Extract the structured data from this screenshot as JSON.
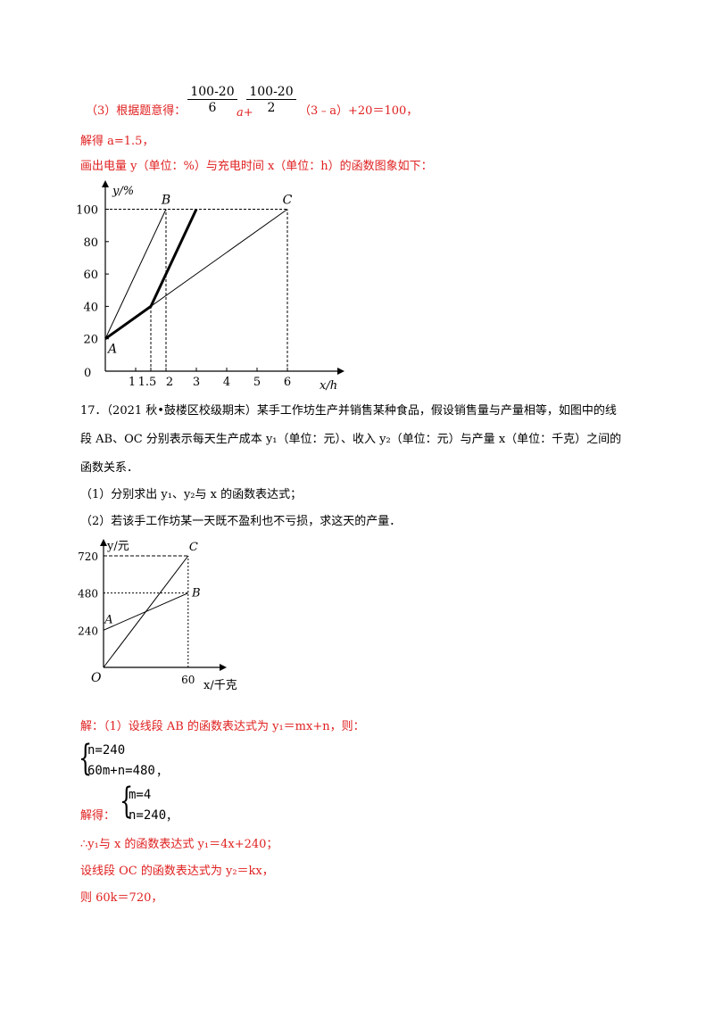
{
  "part3": {
    "prefix": "（3）根据题意得：",
    "frac1_num": "100-20",
    "frac1_den": "6",
    "a_plus": "a+",
    "frac2_num": "100-20",
    "frac2_den": "2",
    "suffix": "（3﹣a）+20＝100，"
  },
  "solve_a": "解得 a=1.5，",
  "draw_line": "画出电量 y（单位：%）与充电时间 x（单位：h）的函数图象如下：",
  "problem17": {
    "line1": "17．（2021 秋•鼓楼区校级期末）某手工作坊生产并销售某种食品，假设销售量与产量相等，如图中的线",
    "line2": "段 AB、OC 分别表示每天生产成本 y₁（单位：元）、收入 y₂（单位：元）与产量 x（单位：千克）之间的",
    "line3": "函数关系．",
    "q1": "（1）分别求出 y₁、y₂与 x 的函数表达式；",
    "q2": "（2）若该手工作坊某一天既不盈利也不亏损，求这天的产量．"
  },
  "solution": {
    "intro": "解：（1）设线段 AB 的函数表达式为 y₁＝mx+n，则：",
    "sys1_eq1": "n=240",
    "sys1_eq2": "60m+n=480",
    "sys1_comma": "，",
    "solve_label": "解得：",
    "sys2_eq1": "m=4",
    "sys2_eq2": "n=240",
    "sys2_comma": "，",
    "therefore": "∴y₁与 x 的函数表达式 y₁＝4x+240；",
    "set_oc": "设线段 OC 的函数表达式为 y₂＝kx，",
    "then": "则 60k＝720，"
  },
  "chart_data": [
    {
      "type": "line",
      "title": "",
      "xlabel": "x/h",
      "ylabel": "y/%",
      "x_ticks": [
        "1",
        "1.5",
        "2",
        "3",
        "4",
        "5",
        "6"
      ],
      "y_ticks": [
        "0",
        "20",
        "40",
        "60",
        "80",
        "100"
      ],
      "origin_label": "0",
      "xlim": [
        0,
        7
      ],
      "ylim": [
        0,
        100
      ],
      "point_labels": [
        {
          "name": "A",
          "x": 0,
          "y": 20
        },
        {
          "name": "B",
          "x": 2,
          "y": 100
        },
        {
          "name": "C",
          "x": 6,
          "y": 100
        }
      ],
      "series": [
        {
          "values": [
            [
              0,
              20
            ],
            [
              2,
              100
            ]
          ],
          "style": "thin"
        },
        {
          "values": [
            [
              0,
              20
            ],
            [
              6,
              100
            ]
          ],
          "style": "thin"
        },
        {
          "values": [
            [
              0,
              20
            ],
            [
              1.5,
              40
            ],
            [
              2,
              60
            ],
            [
              3,
              100
            ]
          ],
          "style": "bold"
        }
      ],
      "guides": [
        {
          "from": [
            0,
            100
          ],
          "to": [
            6,
            100
          ]
        },
        {
          "from": [
            2,
            0
          ],
          "to": [
            2,
            100
          ]
        },
        {
          "from": [
            6,
            0
          ],
          "to": [
            6,
            100
          ]
        },
        {
          "from": [
            1.5,
            0
          ],
          "to": [
            1.5,
            40
          ]
        }
      ]
    },
    {
      "type": "line",
      "title": "",
      "xlabel": "x/千克",
      "ylabel": "y/元",
      "x_ticks": [
        "60"
      ],
      "y_ticks": [
        "240",
        "480",
        "720"
      ],
      "origin_label": "O",
      "xlim": [
        0,
        75
      ],
      "ylim": [
        0,
        800
      ],
      "point_labels": [
        {
          "name": "A",
          "x": 0,
          "y": 240
        },
        {
          "name": "B",
          "x": 60,
          "y": 480
        },
        {
          "name": "C",
          "x": 60,
          "y": 720
        }
      ],
      "series": [
        {
          "values": [
            [
              0,
              240
            ],
            [
              60,
              480
            ]
          ],
          "style": "thin"
        },
        {
          "values": [
            [
              0,
              0
            ],
            [
              60,
              720
            ]
          ],
          "style": "thin"
        }
      ],
      "guides": [
        {
          "from": [
            0,
            720
          ],
          "to": [
            60,
            720
          ]
        },
        {
          "from": [
            0,
            480
          ],
          "to": [
            60,
            480
          ]
        },
        {
          "from": [
            60,
            0
          ],
          "to": [
            60,
            720
          ]
        }
      ]
    }
  ]
}
